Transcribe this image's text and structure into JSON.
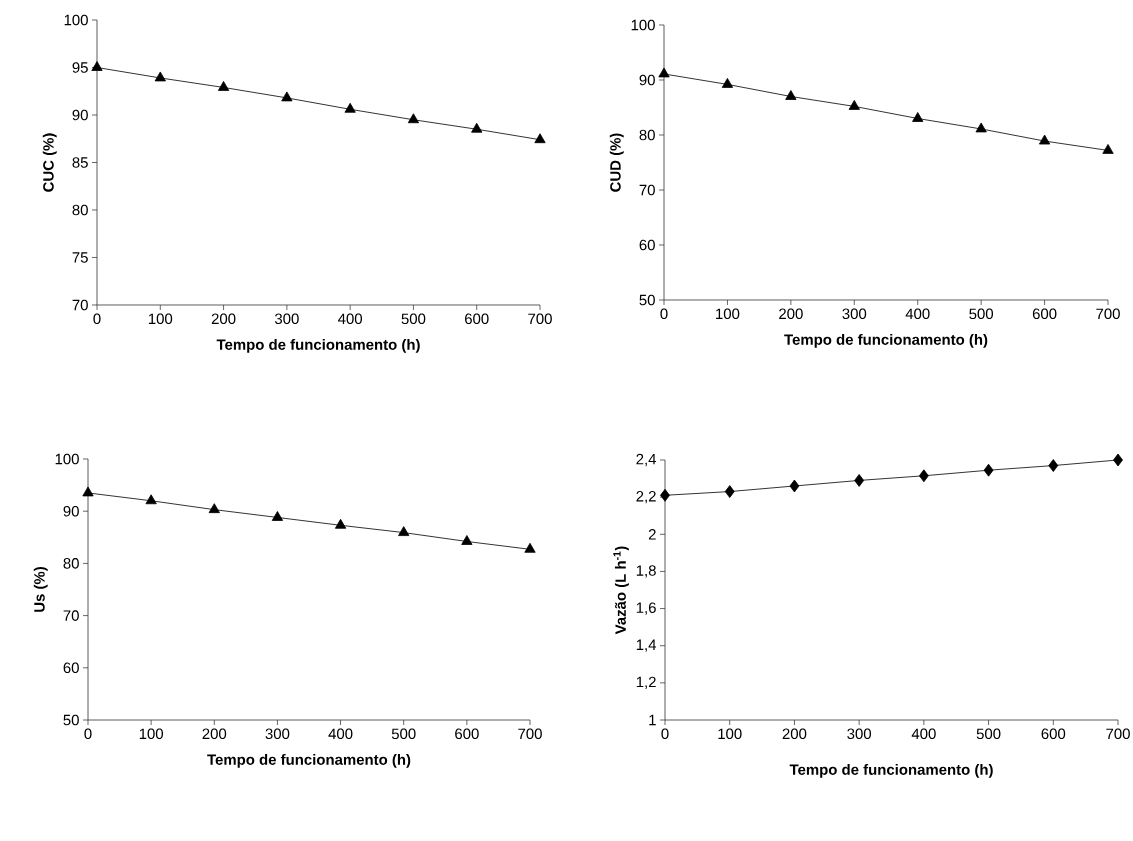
{
  "chart_data": [
    {
      "type": "line",
      "xlabel": "Tempo de funcionamento (h)",
      "ylabel": "CUC (%)",
      "color": "#000000",
      "marker": "triangle",
      "line_style": "solid",
      "grid": false,
      "x": [
        0,
        100,
        200,
        300,
        400,
        500,
        600,
        700
      ],
      "values": [
        95,
        93.9,
        92.9,
        91.8,
        90.6,
        89.5,
        88.5,
        87.4
      ],
      "xlim": [
        0,
        700
      ],
      "xticks": [
        0,
        100,
        200,
        300,
        400,
        500,
        600,
        700
      ],
      "ylim": [
        70,
        100
      ],
      "yticks": [
        70,
        75,
        80,
        85,
        90,
        95,
        100
      ]
    },
    {
      "type": "line",
      "xlabel": "Tempo de funcionamento (h)",
      "ylabel": "CUD (%)",
      "color": "#000000",
      "marker": "triangle",
      "line_style": "solid",
      "grid": false,
      "x": [
        0,
        100,
        200,
        300,
        400,
        500,
        600,
        700
      ],
      "values": [
        91.1,
        89.2,
        87,
        85.2,
        83,
        81.1,
        78.9,
        77.2
      ],
      "xlim": [
        0,
        700
      ],
      "xticks": [
        0,
        100,
        200,
        300,
        400,
        500,
        600,
        700
      ],
      "ylim": [
        50,
        100
      ],
      "yticks": [
        50,
        60,
        70,
        80,
        90,
        100
      ]
    },
    {
      "type": "line",
      "xlabel": "Tempo de funcionamento (h)",
      "ylabel": "Us (%)",
      "color": "#000000",
      "marker": "triangle",
      "line_style": "solid",
      "grid": false,
      "x": [
        0,
        100,
        200,
        300,
        400,
        500,
        600,
        700
      ],
      "values": [
        93.5,
        92.0,
        90.3,
        88.8,
        87.3,
        85.9,
        84.2,
        82.7
      ],
      "xlim": [
        0,
        700
      ],
      "xticks": [
        0,
        100,
        200,
        300,
        400,
        500,
        600,
        700
      ],
      "ylim": [
        50,
        100
      ],
      "yticks": [
        50,
        60,
        70,
        80,
        90,
        100
      ]
    },
    {
      "type": "line",
      "xlabel": "Tempo de funcionamento (h)",
      "ylabel": "Vazão (L h$^{-1}$)",
      "color": "#000000",
      "marker": "diamond",
      "line_style": "solid",
      "grid": false,
      "x": [
        0,
        100,
        200,
        300,
        400,
        500,
        600,
        700
      ],
      "values": [
        2.21,
        2.23,
        2.26,
        2.29,
        2.315,
        2.345,
        2.37,
        2.4
      ],
      "xlim": [
        0,
        700
      ],
      "xticks": [
        0,
        100,
        200,
        300,
        400,
        500,
        600,
        700
      ],
      "ylim": [
        1,
        2.4
      ],
      "yticks": [
        1,
        {
          "value": 1.2,
          "label": "1,2"
        },
        {
          "value": 1.4,
          "label": "1,4"
        },
        {
          "value": 1.6,
          "label": "1,6"
        },
        {
          "value": 1.8,
          "label": "1,8"
        },
        2,
        {
          "value": 2.2,
          "label": "2,2"
        },
        {
          "value": 2.4,
          "label": "2,4"
        }
      ]
    }
  ]
}
